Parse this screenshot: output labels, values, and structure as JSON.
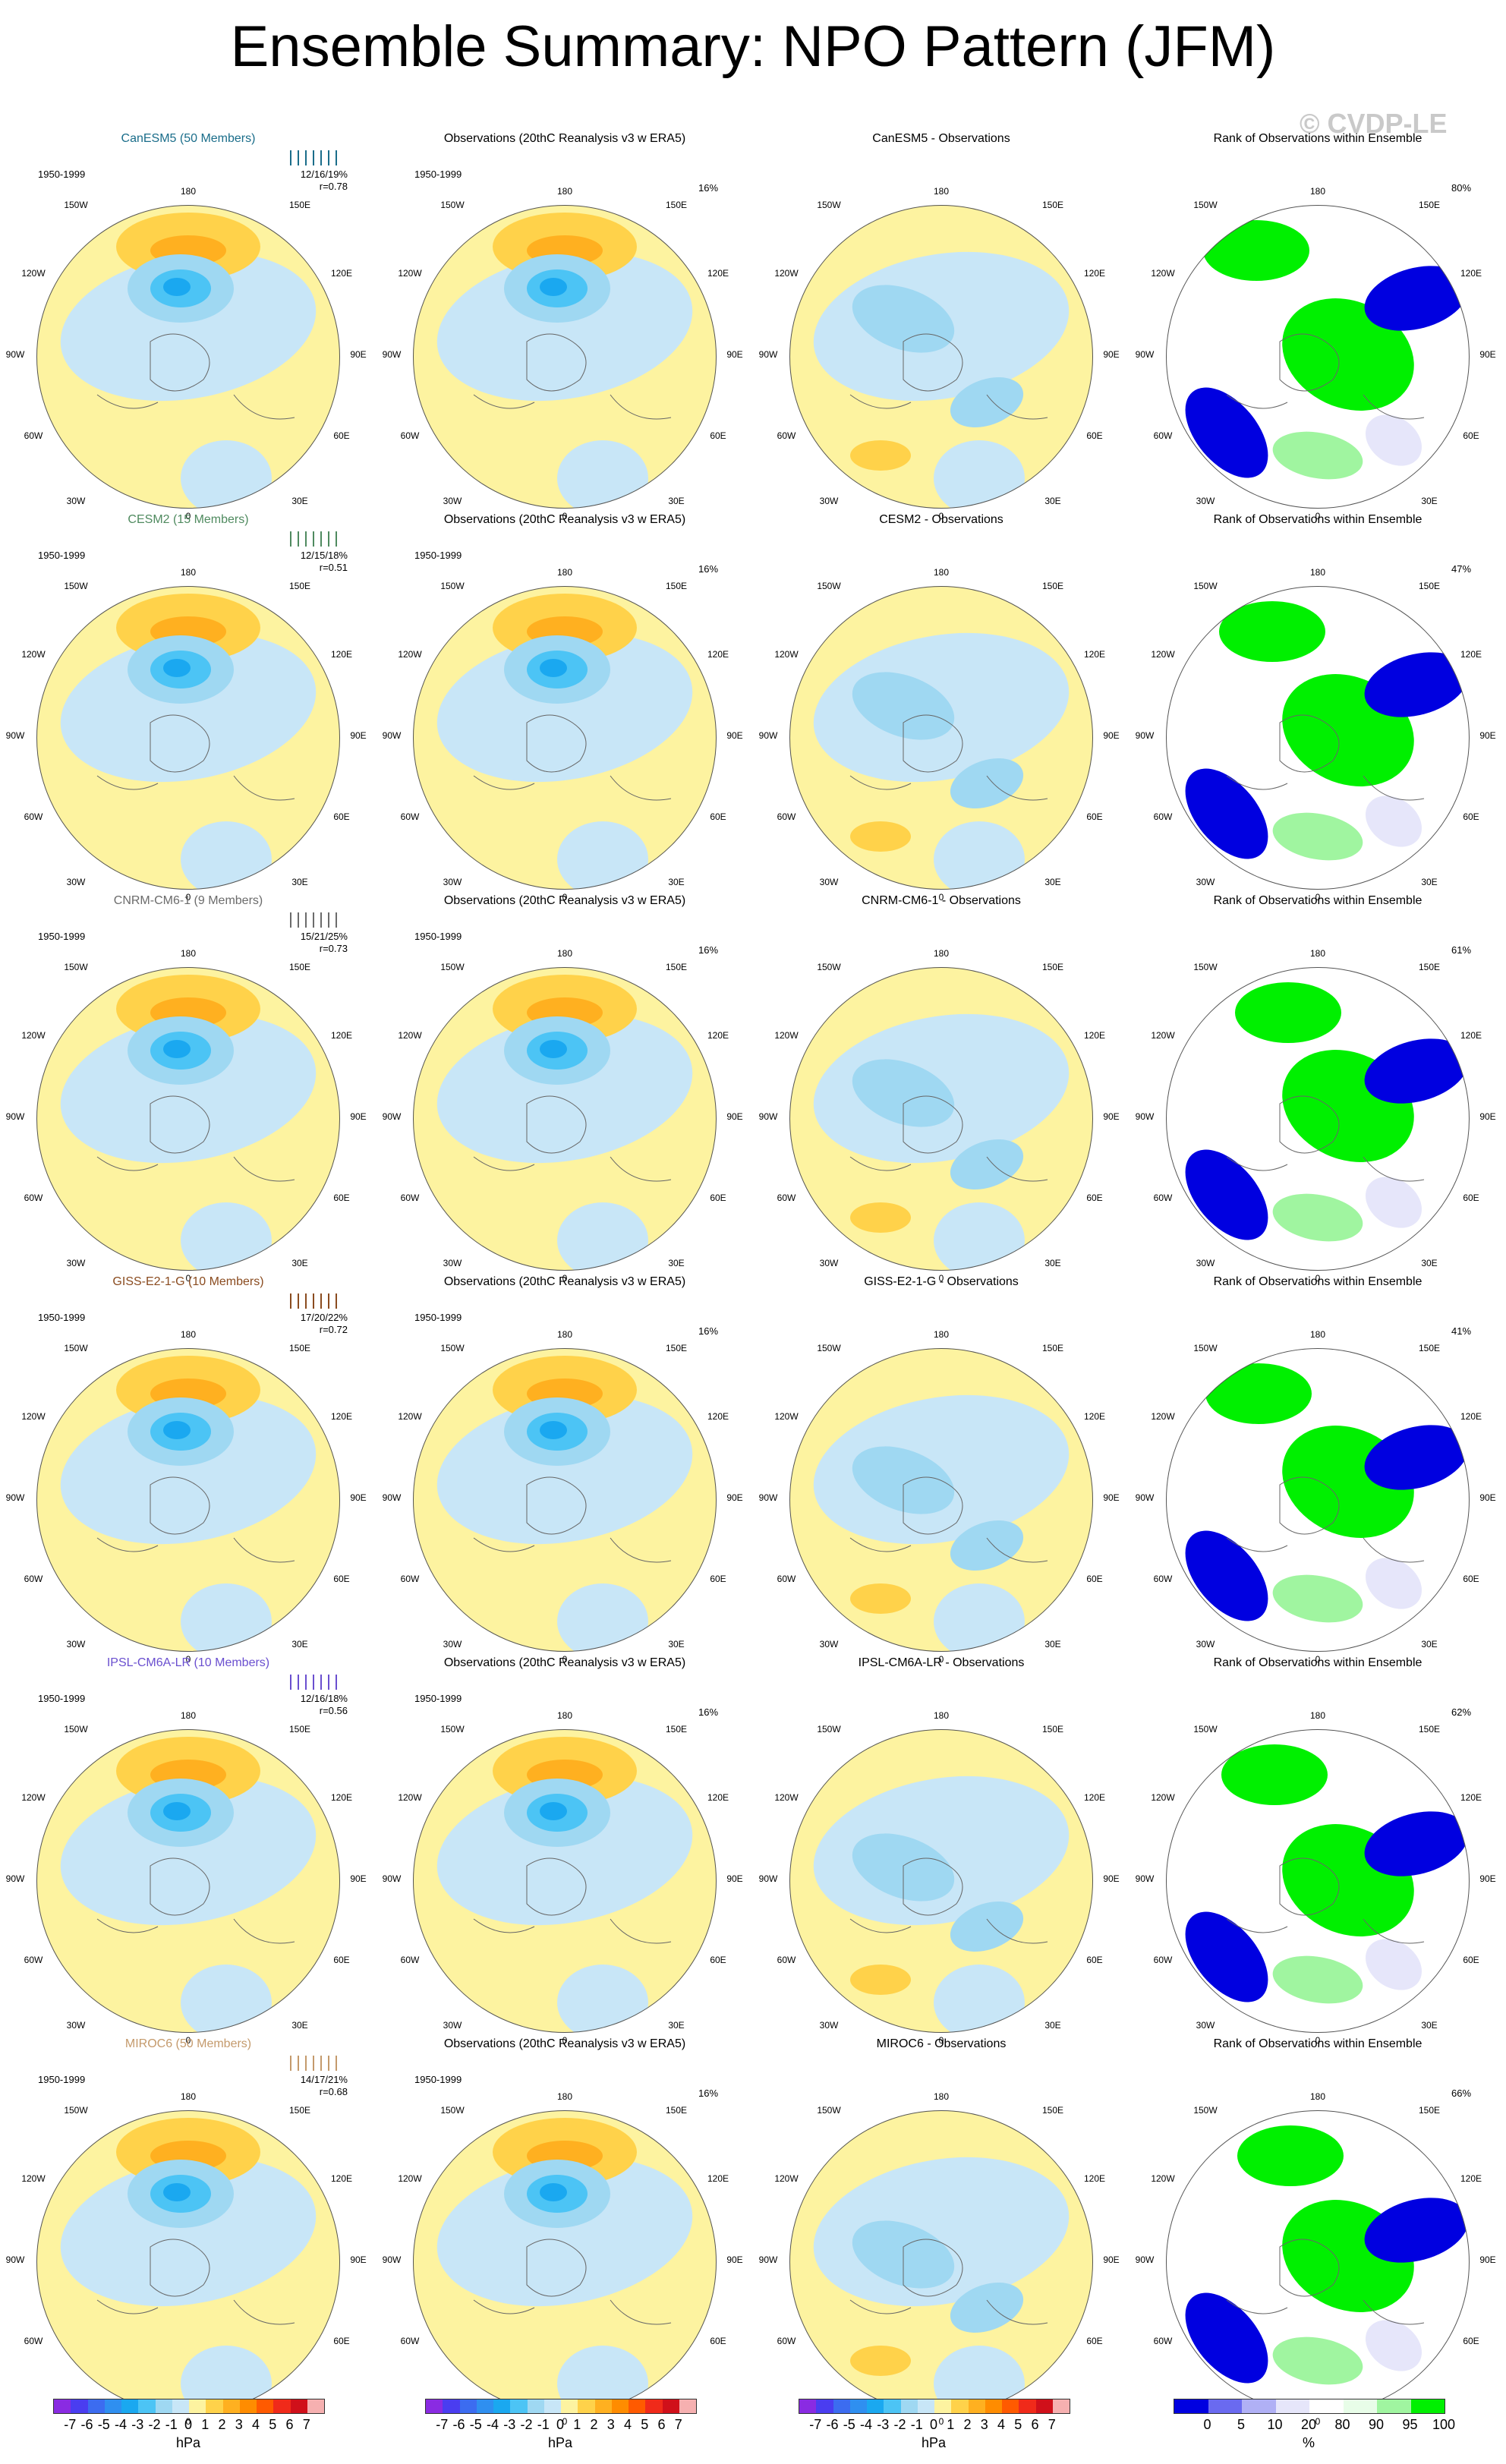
{
  "title": "Ensemble Summary: NPO Pattern (JFM)",
  "watermark": "© CVDP-LE",
  "period_label": "1950-1999",
  "grid_labels": [
    "180",
    "150E",
    "120E",
    "90E",
    "60E",
    "30E",
    "0",
    "30W",
    "60W",
    "90W",
    "120W",
    "150W"
  ],
  "obs_title": "Observations (20thC Reanalysis v3 w ERA5)",
  "obs_pct": "16%",
  "rank_title": "Rank of Observations within Ensemble",
  "models": [
    {
      "name": "CanESM5 (50 Members)",
      "color": "#1a6d8a",
      "stats": "12/16/19%",
      "r": "r=0.78",
      "diff_title": "CanESM5 - Observations",
      "rank_pct": "80%"
    },
    {
      "name": "CESM2 (15 Members)",
      "color": "#4f8a5f",
      "stats": "12/15/18%",
      "r": "r=0.51",
      "diff_title": "CESM2 - Observations",
      "rank_pct": "47%"
    },
    {
      "name": "CNRM-CM6-1 (9 Members)",
      "color": "#6b6b6b",
      "stats": "15/21/25%",
      "r": "r=0.73",
      "diff_title": "CNRM-CM6-1 - Observations",
      "rank_pct": "61%"
    },
    {
      "name": "GISS-E2-1-G (10 Members)",
      "color": "#8a4b1f",
      "stats": "17/20/22%",
      "r": "r=0.72",
      "diff_title": "GISS-E2-1-G - Observations",
      "rank_pct": "41%"
    },
    {
      "name": "IPSL-CM6A-LR (10 Members)",
      "color": "#6a4fcf",
      "stats": "12/16/18%",
      "r": "r=0.56",
      "diff_title": "IPSL-CM6A-LR - Observations",
      "rank_pct": "62%"
    },
    {
      "name": "MIROC6 (50 Members)",
      "color": "#c49a6c",
      "stats": "14/17/21%",
      "r": "r=0.68",
      "diff_title": "MIROC6 - Observations",
      "rank_pct": "66%"
    }
  ],
  "colorbar_hpa": {
    "labels": [
      "-7",
      "-6",
      "-5",
      "-4",
      "-3",
      "-2",
      "-1",
      "0",
      "1",
      "2",
      "3",
      "4",
      "5",
      "6",
      "7"
    ],
    "unit": "hPa",
    "colors": [
      "#8a2be2",
      "#4a3df0",
      "#3c6cf0",
      "#2f8ff0",
      "#1aa8f0",
      "#4cc4f5",
      "#9fd8f2",
      "#c8e6f7",
      "#fdf3a0",
      "#ffd24a",
      "#ffb020",
      "#ff8c00",
      "#ff5a00",
      "#f02a1a",
      "#d0101a",
      "#f6b0b0"
    ]
  },
  "colorbar_rank": {
    "labels": [
      "0",
      "5",
      "10",
      "20",
      "80",
      "90",
      "95",
      "100"
    ],
    "unit": "%",
    "colors": [
      "#0000e0",
      "#6a6af0",
      "#b0b0f5",
      "#e6e6fa",
      "#ffffff",
      "#e8fde8",
      "#a0f5a0",
      "#00f000"
    ]
  }
}
